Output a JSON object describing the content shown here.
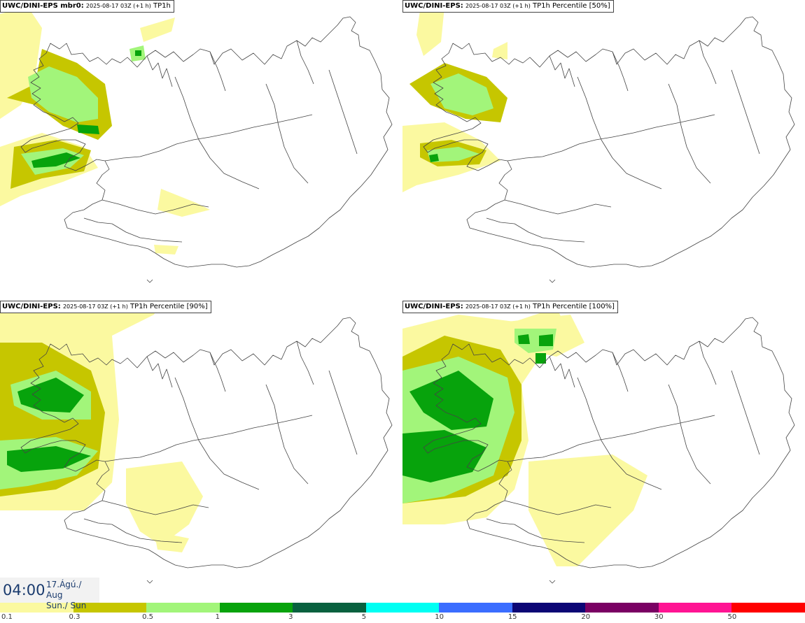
{
  "panels": [
    {
      "model": "UWC/DINI-EPS mbr0:",
      "run": "2025-08-17 03Z (+1 h)",
      "field": "TP1h"
    },
    {
      "model": "UWC/DINI-EPS:",
      "run": "2025-08-17 03Z (+1 h)",
      "field": "TP1h Percentile [50%]"
    },
    {
      "model": "UWC/DINI-EPS:",
      "run": "2025-08-17 03Z (+1 h)",
      "field": "TP1h Percentile [90%]"
    },
    {
      "model": "UWC/DINI-EPS:",
      "run": "2025-08-17 03Z (+1 h)",
      "field": "TP1h Percentile [100%]"
    }
  ],
  "valid_time": {
    "time": "04:00",
    "date_line1": "17.Ágú./ Aug",
    "date_line2": "Sun./ Sun"
  },
  "colorbar": {
    "colors": [
      "#fbf9a0",
      "#c6c600",
      "#a2f57a",
      "#07a30c",
      "#08613f",
      "#00fff3",
      "#3b6dff",
      "#0c0675",
      "#7a0063",
      "#ff1493",
      "#ff0000"
    ],
    "ticks": [
      "0.1",
      "0.3",
      "0.5",
      "1",
      "3",
      "5",
      "10",
      "15",
      "20",
      "30",
      "50"
    ]
  }
}
